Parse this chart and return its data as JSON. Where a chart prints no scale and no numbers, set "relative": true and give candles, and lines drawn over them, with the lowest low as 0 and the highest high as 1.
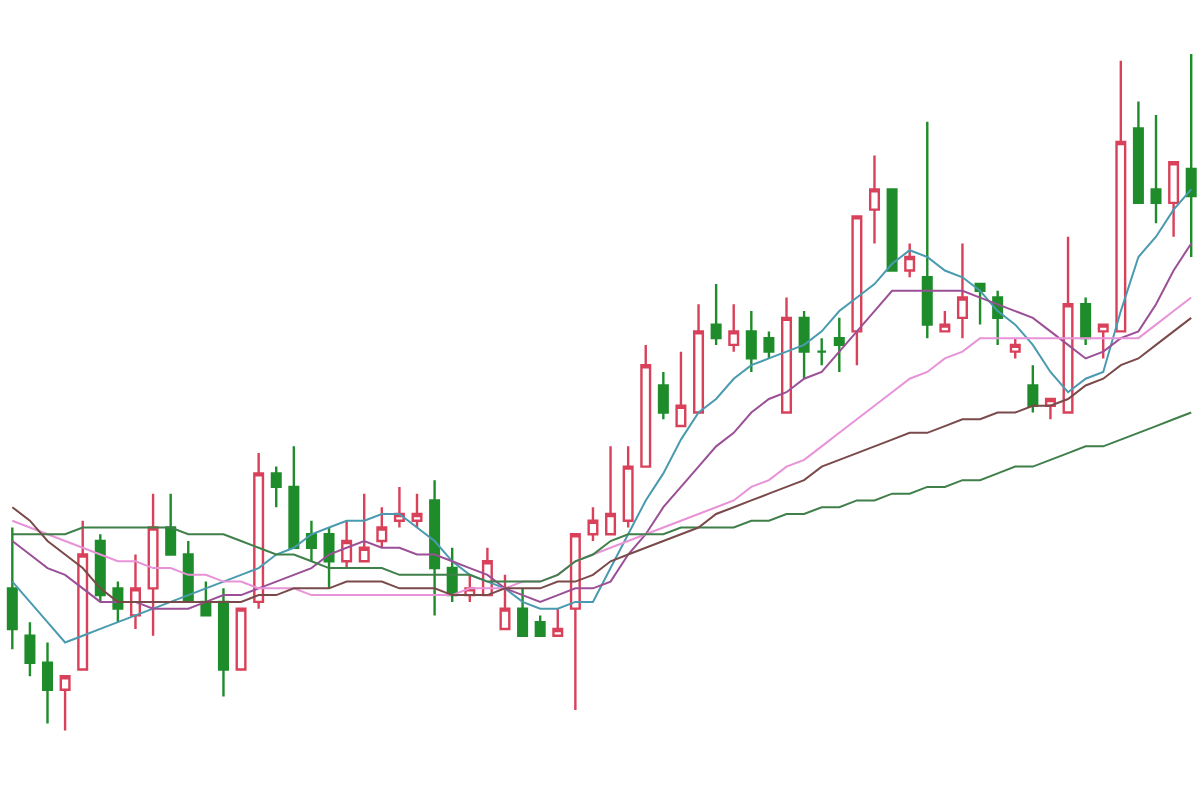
{
  "chart_data": {
    "type": "candlestick",
    "relative": true,
    "categories": [
      null,
      null,
      null,
      null,
      null,
      null,
      null,
      null,
      null,
      null,
      null,
      null,
      null,
      null,
      null,
      null,
      null,
      null,
      null,
      null,
      null,
      null,
      null,
      null,
      null,
      null,
      null,
      null,
      null,
      null,
      null,
      null,
      null,
      null,
      null,
      null,
      null,
      null,
      null,
      null,
      null,
      null,
      null,
      null,
      null,
      null,
      null,
      null,
      null,
      null,
      null,
      null,
      null,
      null,
      null,
      null,
      null,
      null,
      null,
      null,
      null,
      null,
      null,
      null,
      null,
      null,
      null,
      null
    ],
    "colors": [
      "#1e8c2a",
      "#1e8c2a",
      "#1e8c2a",
      "#d9405a",
      "#d9405a",
      "#1e8c2a",
      "#1e8c2a",
      "#d9405a",
      "#d9405a",
      "#1e8c2a",
      "#1e8c2a",
      "#1e8c2a",
      "#1e8c2a",
      "#d9405a",
      "#d9405a",
      "#1e8c2a",
      "#1e8c2a",
      "#1e8c2a",
      "#1e8c2a",
      "#d9405a",
      "#d9405a",
      "#d9405a",
      "#d9405a",
      "#d9405a",
      "#1e8c2a",
      "#1e8c2a",
      "#d9405a",
      "#d9405a",
      "#d9405a",
      "#1e8c2a",
      "#1e8c2a",
      "#d9405a",
      "#d9405a",
      "#d9405a",
      "#d9405a",
      "#d9405a",
      "#d9405a",
      "#1e8c2a",
      "#d9405a",
      "#d9405a",
      "#1e8c2a",
      "#d9405a",
      "#1e8c2a",
      "#1e8c2a",
      "#d9405a",
      "#1e8c2a",
      "#1e8c2a",
      "#1e8c2a",
      "#d9405a",
      "#d9405a",
      "#1e8c2a",
      "#d9405a",
      "#1e8c2a",
      "#d9405a",
      "#d9405a",
      "#1e8c2a",
      "#1e8c2a",
      "#d9405a",
      "#1e8c2a",
      "#d9405a",
      "#d9405a",
      "#1e8c2a",
      "#d9405a",
      "#d9405a",
      "#1e8c2a",
      "#1e8c2a",
      "#d9405a",
      "#1e8c2a"
    ],
    "ohlc": [
      [
        0.21,
        0.3,
        0.12,
        0.15
      ],
      [
        0.14,
        0.16,
        0.08,
        0.1
      ],
      [
        0.1,
        0.13,
        0.01,
        0.06
      ],
      [
        0.06,
        0.08,
        0.0,
        0.08
      ],
      [
        0.09,
        0.31,
        0.09,
        0.26
      ],
      [
        0.28,
        0.29,
        0.19,
        0.2
      ],
      [
        0.21,
        0.22,
        0.16,
        0.18
      ],
      [
        0.17,
        0.26,
        0.15,
        0.21
      ],
      [
        0.21,
        0.35,
        0.14,
        0.3
      ],
      [
        0.3,
        0.35,
        0.26,
        0.26
      ],
      [
        0.26,
        0.28,
        0.19,
        0.19
      ],
      [
        0.19,
        0.22,
        0.17,
        0.17
      ],
      [
        0.19,
        0.21,
        0.05,
        0.09
      ],
      [
        0.09,
        0.18,
        0.09,
        0.18
      ],
      [
        0.19,
        0.41,
        0.18,
        0.38
      ],
      [
        0.38,
        0.39,
        0.33,
        0.36
      ],
      [
        0.36,
        0.42,
        0.27,
        0.27
      ],
      [
        0.29,
        0.31,
        0.25,
        0.27
      ],
      [
        0.29,
        0.3,
        0.21,
        0.25
      ],
      [
        0.25,
        0.31,
        0.24,
        0.28
      ],
      [
        0.25,
        0.35,
        0.25,
        0.27
      ],
      [
        0.28,
        0.33,
        0.27,
        0.3
      ],
      [
        0.31,
        0.36,
        0.3,
        0.32
      ],
      [
        0.31,
        0.35,
        0.3,
        0.32
      ],
      [
        0.34,
        0.37,
        0.17,
        0.24
      ],
      [
        0.24,
        0.27,
        0.19,
        0.2
      ],
      [
        0.2,
        0.23,
        0.19,
        0.21
      ],
      [
        0.2,
        0.27,
        0.2,
        0.25
      ],
      [
        0.15,
        0.23,
        0.15,
        0.18
      ],
      [
        0.18,
        0.21,
        0.14,
        0.14
      ],
      [
        0.16,
        0.17,
        0.14,
        0.14
      ],
      [
        0.14,
        0.18,
        0.14,
        0.15
      ],
      [
        0.18,
        0.29,
        0.03,
        0.29
      ],
      [
        0.29,
        0.33,
        0.28,
        0.31
      ],
      [
        0.29,
        0.42,
        0.29,
        0.32
      ],
      [
        0.31,
        0.42,
        0.3,
        0.39
      ],
      [
        0.39,
        0.57,
        0.39,
        0.54
      ],
      [
        0.51,
        0.53,
        0.46,
        0.47
      ],
      [
        0.45,
        0.56,
        0.45,
        0.48
      ],
      [
        0.47,
        0.63,
        0.47,
        0.59
      ],
      [
        0.6,
        0.66,
        0.57,
        0.58
      ],
      [
        0.57,
        0.63,
        0.56,
        0.59
      ],
      [
        0.59,
        0.62,
        0.53,
        0.55
      ],
      [
        0.58,
        0.59,
        0.55,
        0.56
      ],
      [
        0.47,
        0.64,
        0.47,
        0.61
      ],
      [
        0.61,
        0.62,
        0.52,
        0.56
      ],
      [
        0.56,
        0.58,
        0.54,
        0.56
      ],
      [
        0.58,
        0.61,
        0.53,
        0.57
      ],
      [
        0.59,
        0.76,
        0.54,
        0.76
      ],
      [
        0.77,
        0.85,
        0.72,
        0.8
      ],
      [
        0.8,
        0.8,
        0.68,
        0.68
      ],
      [
        0.68,
        0.72,
        0.67,
        0.7
      ],
      [
        0.67,
        0.9,
        0.58,
        0.6
      ],
      [
        0.59,
        0.62,
        0.59,
        0.6
      ],
      [
        0.61,
        0.72,
        0.58,
        0.64
      ],
      [
        0.66,
        0.66,
        0.6,
        0.65
      ],
      [
        0.64,
        0.65,
        0.57,
        0.61
      ],
      [
        0.56,
        0.58,
        0.55,
        0.57
      ],
      [
        0.51,
        0.54,
        0.47,
        0.48
      ],
      [
        0.48,
        0.49,
        0.46,
        0.49
      ],
      [
        0.47,
        0.73,
        0.47,
        0.63
      ],
      [
        0.63,
        0.64,
        0.57,
        0.58
      ],
      [
        0.59,
        0.6,
        0.55,
        0.6
      ],
      [
        0.59,
        0.99,
        0.59,
        0.87
      ],
      [
        0.89,
        0.93,
        0.78,
        0.78
      ],
      [
        0.8,
        0.91,
        0.75,
        0.78
      ],
      [
        0.78,
        0.84,
        0.73,
        0.84
      ],
      [
        0.83,
        1.0,
        0.7,
        0.79
      ]
    ],
    "series": [
      {
        "type": "line",
        "color": "#4a9ab0",
        "values": [
          0.22,
          0.19,
          0.16,
          0.13,
          0.14,
          0.15,
          0.16,
          0.17,
          0.18,
          0.19,
          0.2,
          0.21,
          0.22,
          0.23,
          0.24,
          0.26,
          0.27,
          0.29,
          0.3,
          0.31,
          0.31,
          0.32,
          0.32,
          0.3,
          0.28,
          0.25,
          0.23,
          0.22,
          0.21,
          0.19,
          0.18,
          0.18,
          0.19,
          0.19,
          0.24,
          0.29,
          0.34,
          0.38,
          0.43,
          0.47,
          0.49,
          0.52,
          0.54,
          0.55,
          0.56,
          0.57,
          0.59,
          0.62,
          0.64,
          0.66,
          0.69,
          0.71,
          0.7,
          0.68,
          0.67,
          0.65,
          0.62,
          0.6,
          0.57,
          0.53,
          0.5,
          0.52,
          0.53,
          0.62,
          0.7,
          0.73,
          0.77,
          0.8
        ]
      },
      {
        "type": "line",
        "color": "#9b4f96",
        "values": [
          0.28,
          0.26,
          0.24,
          0.23,
          0.21,
          0.19,
          0.19,
          0.19,
          0.18,
          0.18,
          0.18,
          0.19,
          0.2,
          0.2,
          0.21,
          0.22,
          0.23,
          0.24,
          0.26,
          0.27,
          0.28,
          0.27,
          0.27,
          0.26,
          0.26,
          0.25,
          0.24,
          0.23,
          0.21,
          0.2,
          0.19,
          0.2,
          0.21,
          0.21,
          0.22,
          0.26,
          0.29,
          0.33,
          0.36,
          0.39,
          0.42,
          0.44,
          0.47,
          0.49,
          0.5,
          0.52,
          0.53,
          0.56,
          0.59,
          0.62,
          0.65,
          0.65,
          0.65,
          0.65,
          0.65,
          0.64,
          0.63,
          0.62,
          0.61,
          0.59,
          0.57,
          0.55,
          0.56,
          0.58,
          0.59,
          0.63,
          0.68,
          0.72
        ]
      },
      {
        "type": "line",
        "color": "#e892d8",
        "values": [
          0.31,
          0.3,
          0.29,
          0.28,
          0.27,
          0.26,
          0.25,
          0.25,
          0.24,
          0.24,
          0.23,
          0.23,
          0.22,
          0.22,
          0.21,
          0.21,
          0.21,
          0.2,
          0.2,
          0.2,
          0.2,
          0.2,
          0.2,
          0.2,
          0.2,
          0.2,
          0.21,
          0.21,
          0.21,
          0.22,
          0.22,
          0.23,
          0.25,
          0.26,
          0.27,
          0.28,
          0.29,
          0.3,
          0.31,
          0.32,
          0.33,
          0.34,
          0.36,
          0.37,
          0.39,
          0.4,
          0.42,
          0.44,
          0.46,
          0.48,
          0.5,
          0.52,
          0.53,
          0.55,
          0.56,
          0.58,
          0.58,
          0.58,
          0.58,
          0.58,
          0.58,
          0.58,
          0.58,
          0.58,
          0.58,
          0.6,
          0.62,
          0.64
        ]
      },
      {
        "type": "line",
        "color": "#3f7f4a",
        "values": [
          0.29,
          0.29,
          0.29,
          0.29,
          0.3,
          0.3,
          0.3,
          0.3,
          0.3,
          0.3,
          0.29,
          0.29,
          0.29,
          0.28,
          0.27,
          0.26,
          0.26,
          0.25,
          0.24,
          0.24,
          0.24,
          0.24,
          0.23,
          0.23,
          0.23,
          0.23,
          0.23,
          0.22,
          0.22,
          0.22,
          0.22,
          0.23,
          0.25,
          0.26,
          0.28,
          0.29,
          0.29,
          0.29,
          0.3,
          0.3,
          0.3,
          0.3,
          0.31,
          0.31,
          0.32,
          0.32,
          0.33,
          0.33,
          0.34,
          0.34,
          0.35,
          0.35,
          0.36,
          0.36,
          0.37,
          0.37,
          0.38,
          0.39,
          0.39,
          0.4,
          0.41,
          0.42,
          0.42,
          0.43,
          0.44,
          0.45,
          0.46,
          0.47
        ]
      },
      {
        "type": "line",
        "color": "#7a4a4a",
        "values": [
          0.33,
          0.31,
          0.28,
          0.26,
          0.24,
          0.21,
          0.19,
          0.19,
          0.19,
          0.19,
          0.19,
          0.19,
          0.19,
          0.19,
          0.2,
          0.2,
          0.21,
          0.21,
          0.21,
          0.22,
          0.22,
          0.22,
          0.21,
          0.21,
          0.21,
          0.2,
          0.2,
          0.2,
          0.21,
          0.21,
          0.21,
          0.22,
          0.22,
          0.23,
          0.25,
          0.26,
          0.27,
          0.28,
          0.29,
          0.3,
          0.32,
          0.33,
          0.34,
          0.35,
          0.36,
          0.37,
          0.39,
          0.4,
          0.41,
          0.42,
          0.43,
          0.44,
          0.44,
          0.45,
          0.46,
          0.46,
          0.47,
          0.47,
          0.48,
          0.48,
          0.49,
          0.51,
          0.52,
          0.54,
          0.55,
          0.57,
          0.59,
          0.61
        ]
      }
    ]
  }
}
